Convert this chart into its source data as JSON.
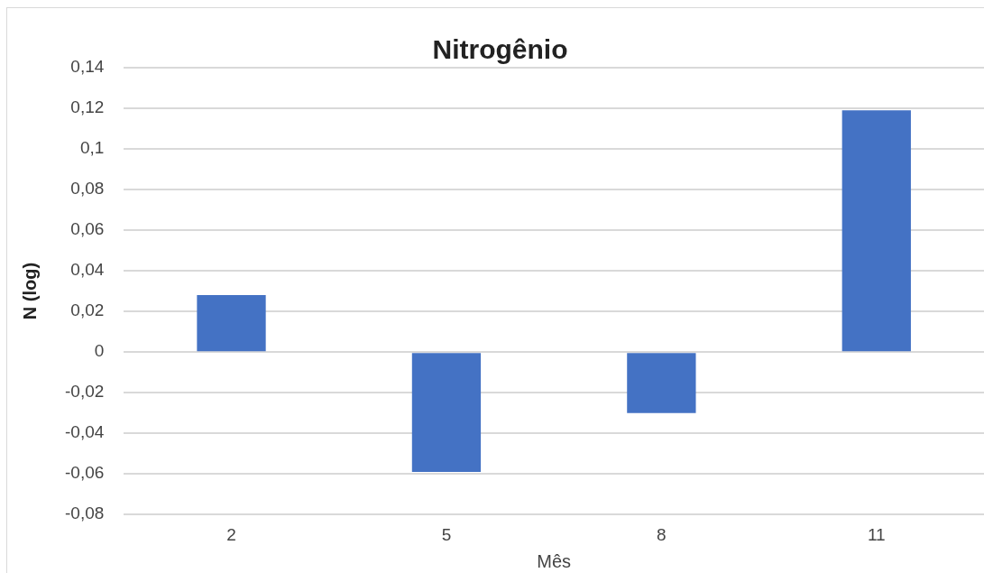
{
  "chart_data": {
    "type": "bar",
    "title": "Nitrogênio",
    "xlabel": "Mês",
    "ylabel": "N (log)",
    "categories": [
      "2",
      "5",
      "8",
      "11"
    ],
    "values": [
      0.028,
      -0.059,
      -0.03,
      0.119
    ],
    "color": "#4472c4",
    "ylim": [
      -0.08,
      0.14
    ],
    "yticks": [
      {
        "value": -0.08,
        "label": "-0,08"
      },
      {
        "value": -0.06,
        "label": "-0,06"
      },
      {
        "value": -0.04,
        "label": "-0,04"
      },
      {
        "value": -0.02,
        "label": "-0,02"
      },
      0,
      {
        "value": 0.02,
        "label": "0,02"
      },
      {
        "value": 0.04,
        "label": "0,04"
      },
      {
        "value": 0.06,
        "label": "0,06"
      },
      {
        "value": 0.08,
        "label": "0,08"
      },
      {
        "value": 0.1,
        "label": "0,1"
      },
      {
        "value": 0.12,
        "label": "0,12"
      },
      {
        "value": 0.14,
        "label": "0,14"
      }
    ],
    "grid": "y"
  }
}
